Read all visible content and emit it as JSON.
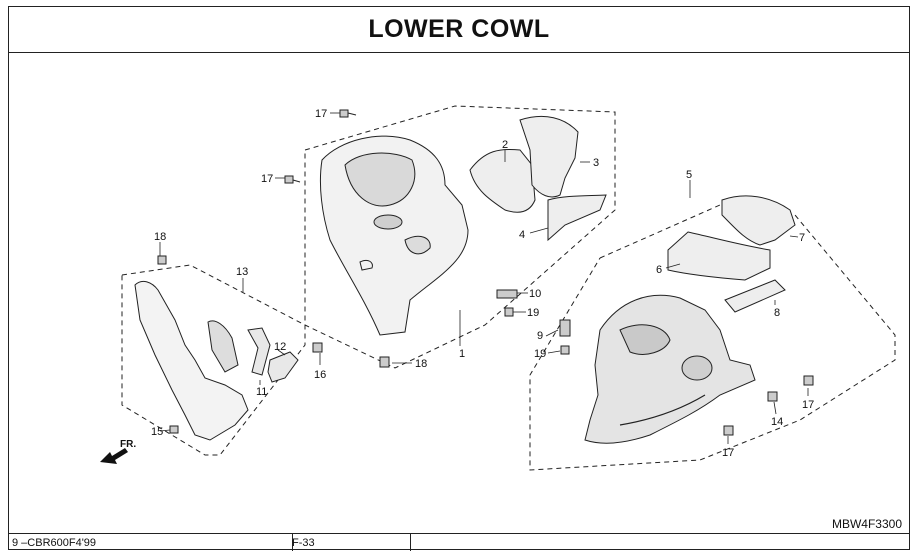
{
  "header": {
    "title": "LOWER COWL"
  },
  "diagram": {
    "code": "MBW4F3300",
    "direction_label": "FR.",
    "callouts": [
      "1",
      "2",
      "3",
      "4",
      "5",
      "6",
      "7",
      "8",
      "9",
      "10",
      "11",
      "12",
      "13",
      "14",
      "15",
      "16",
      "17",
      "18",
      "19"
    ]
  },
  "footer": {
    "model": "9 –CBR600F4'99",
    "page": "F-33",
    "blank": ""
  }
}
